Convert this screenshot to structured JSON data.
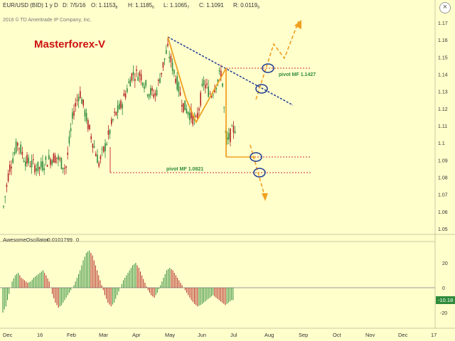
{
  "header": {
    "symbol": "EUR/USD (BID) 1 y D",
    "date": "D: 7/5/16",
    "open": "O: 1.1153",
    "open_sub": "8",
    "high": "H: 1.1185",
    "high_sub": "6",
    "low": "L: 1.1065",
    "low_sub": "7",
    "close": "C: 1.1091",
    "range": "R: 0.0119",
    "range_sub": "9",
    "copyright": "2016 © TD Ameritrade IP Company, Inc."
  },
  "close_icon": "×",
  "brand": {
    "label": "Masterforex-V",
    "color": "#cc1111"
  },
  "pivots": [
    {
      "label": "pivot MF 1.1427",
      "value": 1.1427
    },
    {
      "label": "pivot MF 1.0821",
      "value": 1.0821
    }
  ],
  "colors": {
    "background": "#ffffcc",
    "bull": "#2e8b3a",
    "bear": "#b22222",
    "trend": "#1f3a93",
    "pattern": "#f0a020",
    "pivot_line": "#cc3333",
    "pivot_text": "#2e8b3a",
    "circle": "#1f3a93"
  },
  "price_axis": {
    "ticks": [
      "1.17",
      "1.16",
      "1.15",
      "1.14",
      "1.13",
      "1.12",
      "1.11",
      "1.1",
      "1.09",
      "1.08",
      "1.07",
      "1.06",
      "1.05"
    ],
    "min": 1.05,
    "max": 1.17
  },
  "x_axis": {
    "labels": [
      "Dec",
      "16",
      "Feb",
      "Mar",
      "Apr",
      "May",
      "Jun",
      "Jul",
      "Aug",
      "Sep",
      "Oct",
      "Nov",
      "Dec",
      "17"
    ]
  },
  "oscillator": {
    "name": "AwesomeOscillator",
    "value": "-0.0101799",
    "extra": "0",
    "ticks": [
      "20",
      "0",
      "-20"
    ],
    "current_value": "-10.18"
  },
  "chart_data": {
    "type": "line",
    "title": "EUR/USD (BID) 1 y D",
    "price_path": [
      [
        "2015-12-01",
        1.06
      ],
      [
        "2015-12-07",
        1.085
      ],
      [
        "2015-12-15",
        1.1
      ],
      [
        "2015-12-22",
        1.09
      ],
      [
        "2016-01-04",
        1.085
      ],
      [
        "2016-01-12",
        1.09
      ],
      [
        "2016-01-20",
        1.092
      ],
      [
        "2016-01-29",
        1.085
      ],
      [
        "2016-02-05",
        1.118
      ],
      [
        "2016-02-11",
        1.13
      ],
      [
        "2016-02-19",
        1.11
      ],
      [
        "2016-02-29",
        1.088
      ],
      [
        "2016-03-07",
        1.1
      ],
      [
        "2016-03-14",
        1.115
      ],
      [
        "2016-03-21",
        1.122
      ],
      [
        "2016-03-31",
        1.14
      ],
      [
        "2016-04-08",
        1.14
      ],
      [
        "2016-04-15",
        1.13
      ],
      [
        "2016-04-22",
        1.128
      ],
      [
        "2016-05-03",
        1.155
      ],
      [
        "2016-05-10",
        1.14
      ],
      [
        "2016-05-18",
        1.122
      ],
      [
        "2016-05-30",
        1.112
      ],
      [
        "2016-06-06",
        1.135
      ],
      [
        "2016-06-13",
        1.128
      ],
      [
        "2016-06-23",
        1.142
      ],
      [
        "2016-06-27",
        1.1
      ],
      [
        "2016-07-05",
        1.109
      ]
    ],
    "oscillator_values": [
      [
        -20,
        -15,
        -5,
        5,
        10,
        12,
        8,
        6,
        4,
        5,
        8,
        10,
        12,
        14,
        10,
        5,
        -5,
        -12,
        -16,
        -14,
        -10,
        -6,
        -2,
        2,
        8,
        14,
        22,
        28,
        30,
        26,
        18,
        10,
        2,
        -6,
        -12,
        -15,
        -12,
        -6,
        0,
        6,
        10,
        14,
        18,
        20,
        16,
        10,
        4,
        -2,
        -6,
        -8,
        -4,
        2,
        8,
        14,
        16,
        14,
        10,
        6,
        2,
        -2,
        -6,
        -10,
        -13,
        -15,
        -14,
        -12,
        -10,
        -8,
        -6,
        -8,
        -10,
        -12,
        -14,
        -12,
        -10
      ]
    ],
    "trendline_down": [
      [
        "2016-05-03",
        1.162
      ],
      [
        "2016-07-31",
        1.124
      ]
    ],
    "legend": "none",
    "ylim": [
      1.05,
      1.17
    ]
  }
}
